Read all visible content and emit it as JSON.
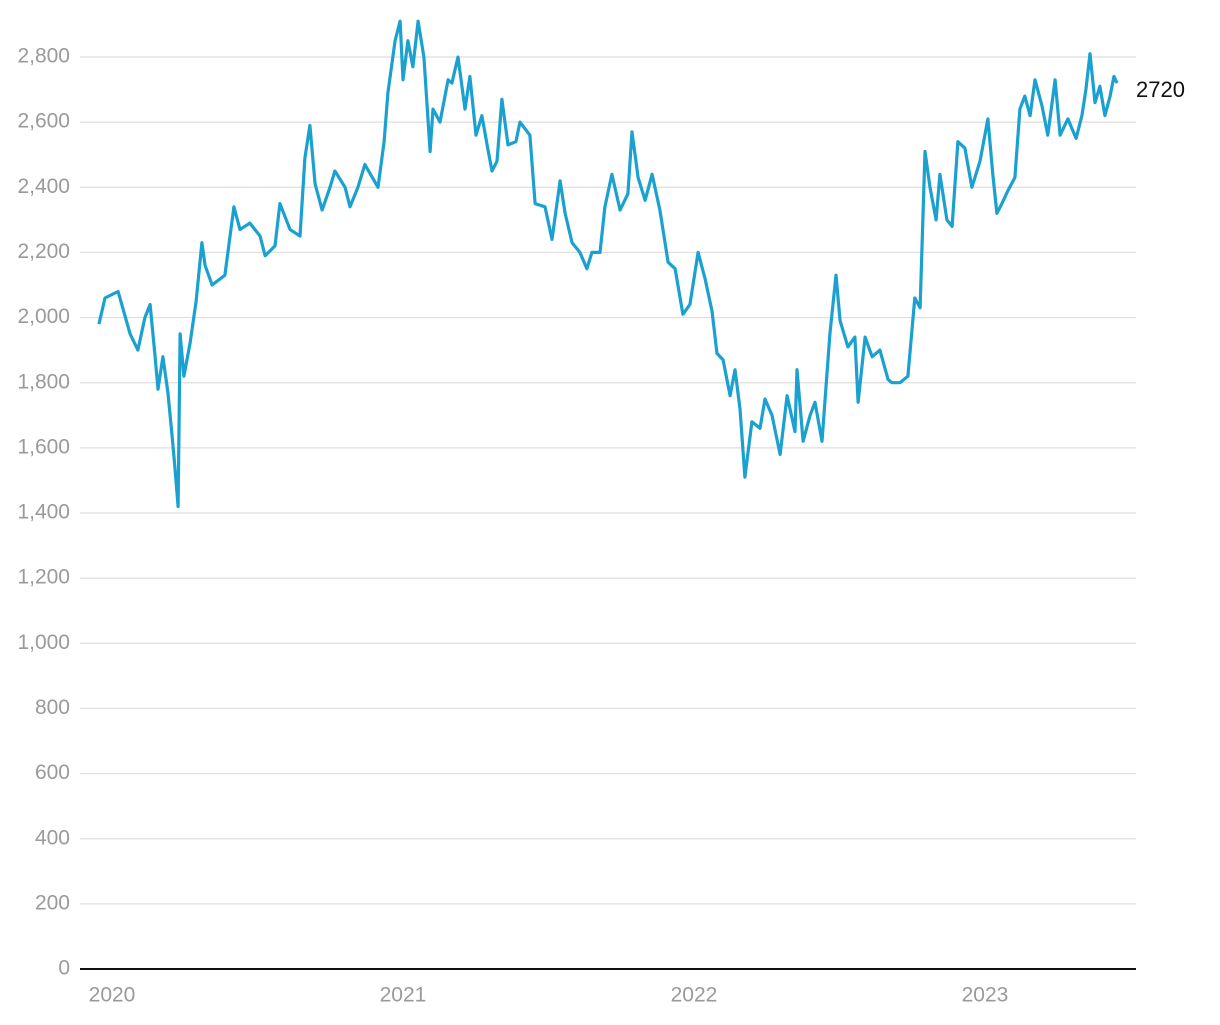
{
  "chart_data": {
    "type": "line",
    "color": "#1ba1cf",
    "x": [
      2019.955,
      2019.976,
      2020.021,
      2020.062,
      2020.089,
      2020.113,
      2020.131,
      2020.148,
      2020.158,
      2020.175,
      2020.192,
      2020.206,
      2020.216,
      2020.227,
      2020.234,
      2020.247,
      2020.268,
      2020.289,
      2020.309,
      2020.32,
      2020.344,
      2020.388,
      2020.419,
      2020.44,
      2020.474,
      2020.509,
      2020.526,
      2020.56,
      2020.577,
      2020.612,
      2020.646,
      2020.663,
      2020.68,
      2020.698,
      2020.722,
      2020.749,
      2020.766,
      2020.801,
      2020.818,
      2020.845,
      2020.869,
      2020.914,
      2020.935,
      2020.948,
      2020.973,
      2020.99,
      2021.0,
      2021.017,
      2021.034,
      2021.052,
      2021.072,
      2021.093,
      2021.103,
      2021.127,
      2021.155,
      2021.168,
      2021.189,
      2021.213,
      2021.23,
      2021.251,
      2021.271,
      2021.289,
      2021.306,
      2021.323,
      2021.34,
      2021.361,
      2021.388,
      2021.402,
      2021.436,
      2021.454,
      2021.488,
      2021.512,
      2021.54,
      2021.557,
      2021.581,
      2021.608,
      2021.632,
      2021.649,
      2021.677,
      2021.694,
      2021.718,
      2021.746,
      2021.773,
      2021.787,
      2021.808,
      2021.832,
      2021.856,
      2021.883,
      2021.911,
      2021.935,
      2021.962,
      2021.986,
      2022.014,
      2022.038,
      2022.062,
      2022.079,
      2022.1,
      2022.124,
      2022.141,
      2022.158,
      2022.175,
      2022.199,
      2022.227,
      2022.244,
      2022.268,
      2022.296,
      2022.32,
      2022.347,
      2022.354,
      2022.375,
      2022.399,
      2022.416,
      2022.44,
      2022.467,
      2022.488,
      2022.502,
      2022.529,
      2022.553,
      2022.564,
      2022.588,
      2022.612,
      2022.639,
      2022.667,
      2022.68,
      2022.708,
      2022.735,
      2022.759,
      2022.777,
      2022.794,
      2022.811,
      2022.832,
      2022.845,
      2022.869,
      2022.887,
      2022.907,
      2022.931,
      2022.955,
      2022.983,
      2023.01,
      2023.027,
      2023.041,
      2023.058,
      2023.079,
      2023.103,
      2023.12,
      2023.137,
      2023.155,
      2023.172,
      2023.196,
      2023.216,
      2023.241,
      2023.258,
      2023.285,
      2023.313,
      2023.333,
      2023.347,
      2023.361,
      2023.378,
      2023.395,
      2023.412,
      2023.43,
      2023.443,
      2023.454
    ],
    "values": [
      1980,
      2060,
      2080,
      1950,
      1900,
      2000,
      2040,
      1880,
      1780,
      1880,
      1770,
      1640,
      1540,
      1420,
      1950,
      1820,
      1920,
      2050,
      2230,
      2160,
      2100,
      2130,
      2340,
      2270,
      2290,
      2250,
      2190,
      2220,
      2350,
      2270,
      2250,
      2490,
      2590,
      2410,
      2330,
      2400,
      2450,
      2400,
      2340,
      2400,
      2470,
      2400,
      2540,
      2690,
      2850,
      2910,
      2730,
      2850,
      2770,
      2910,
      2800,
      2510,
      2640,
      2600,
      2730,
      2720,
      2800,
      2640,
      2740,
      2560,
      2620,
      2530,
      2450,
      2480,
      2670,
      2530,
      2540,
      2600,
      2560,
      2350,
      2340,
      2240,
      2420,
      2320,
      2230,
      2200,
      2150,
      2200,
      2200,
      2340,
      2440,
      2330,
      2380,
      2570,
      2430,
      2360,
      2440,
      2330,
      2170,
      2150,
      2010,
      2040,
      2200,
      2120,
      2020,
      1890,
      1870,
      1760,
      1840,
      1720,
      1510,
      1680,
      1660,
      1750,
      1700,
      1580,
      1760,
      1650,
      1840,
      1620,
      1700,
      1740,
      1620,
      1950,
      2130,
      1990,
      1910,
      1940,
      1740,
      1940,
      1880,
      1900,
      1810,
      1800,
      1800,
      1820,
      2060,
      2030,
      2510,
      2400,
      2300,
      2440,
      2300,
      2280,
      2540,
      2520,
      2400,
      2480,
      2610,
      2440,
      2320,
      2350,
      2390,
      2430,
      2640,
      2680,
      2620,
      2730,
      2650,
      2560,
      2730,
      2560,
      2610,
      2550,
      2620,
      2700,
      2810,
      2660,
      2710,
      2620,
      2680,
      2740,
      2720
    ],
    "xlim": [
      2019.89,
      2023.519
    ],
    "xticks": [
      2020,
      2021,
      2022,
      2023
    ],
    "ylim": [
      0,
      2900
    ],
    "yticks": [
      0,
      200,
      400,
      600,
      800,
      {
        "value": 1000,
        "label": "1,000"
      },
      {
        "value": 1200,
        "label": "1,200"
      },
      {
        "value": 1400,
        "label": "1,400"
      },
      {
        "value": 1600,
        "label": "1,600"
      },
      {
        "value": 1800,
        "label": "1,800"
      },
      {
        "value": 2000,
        "label": "2,000"
      },
      {
        "value": 2200,
        "label": "2,200"
      },
      {
        "value": 2400,
        "label": "2,400"
      },
      {
        "value": 2600,
        "label": "2,600"
      },
      {
        "value": 2800,
        "label": "2,800"
      }
    ],
    "grid": true
  }
}
